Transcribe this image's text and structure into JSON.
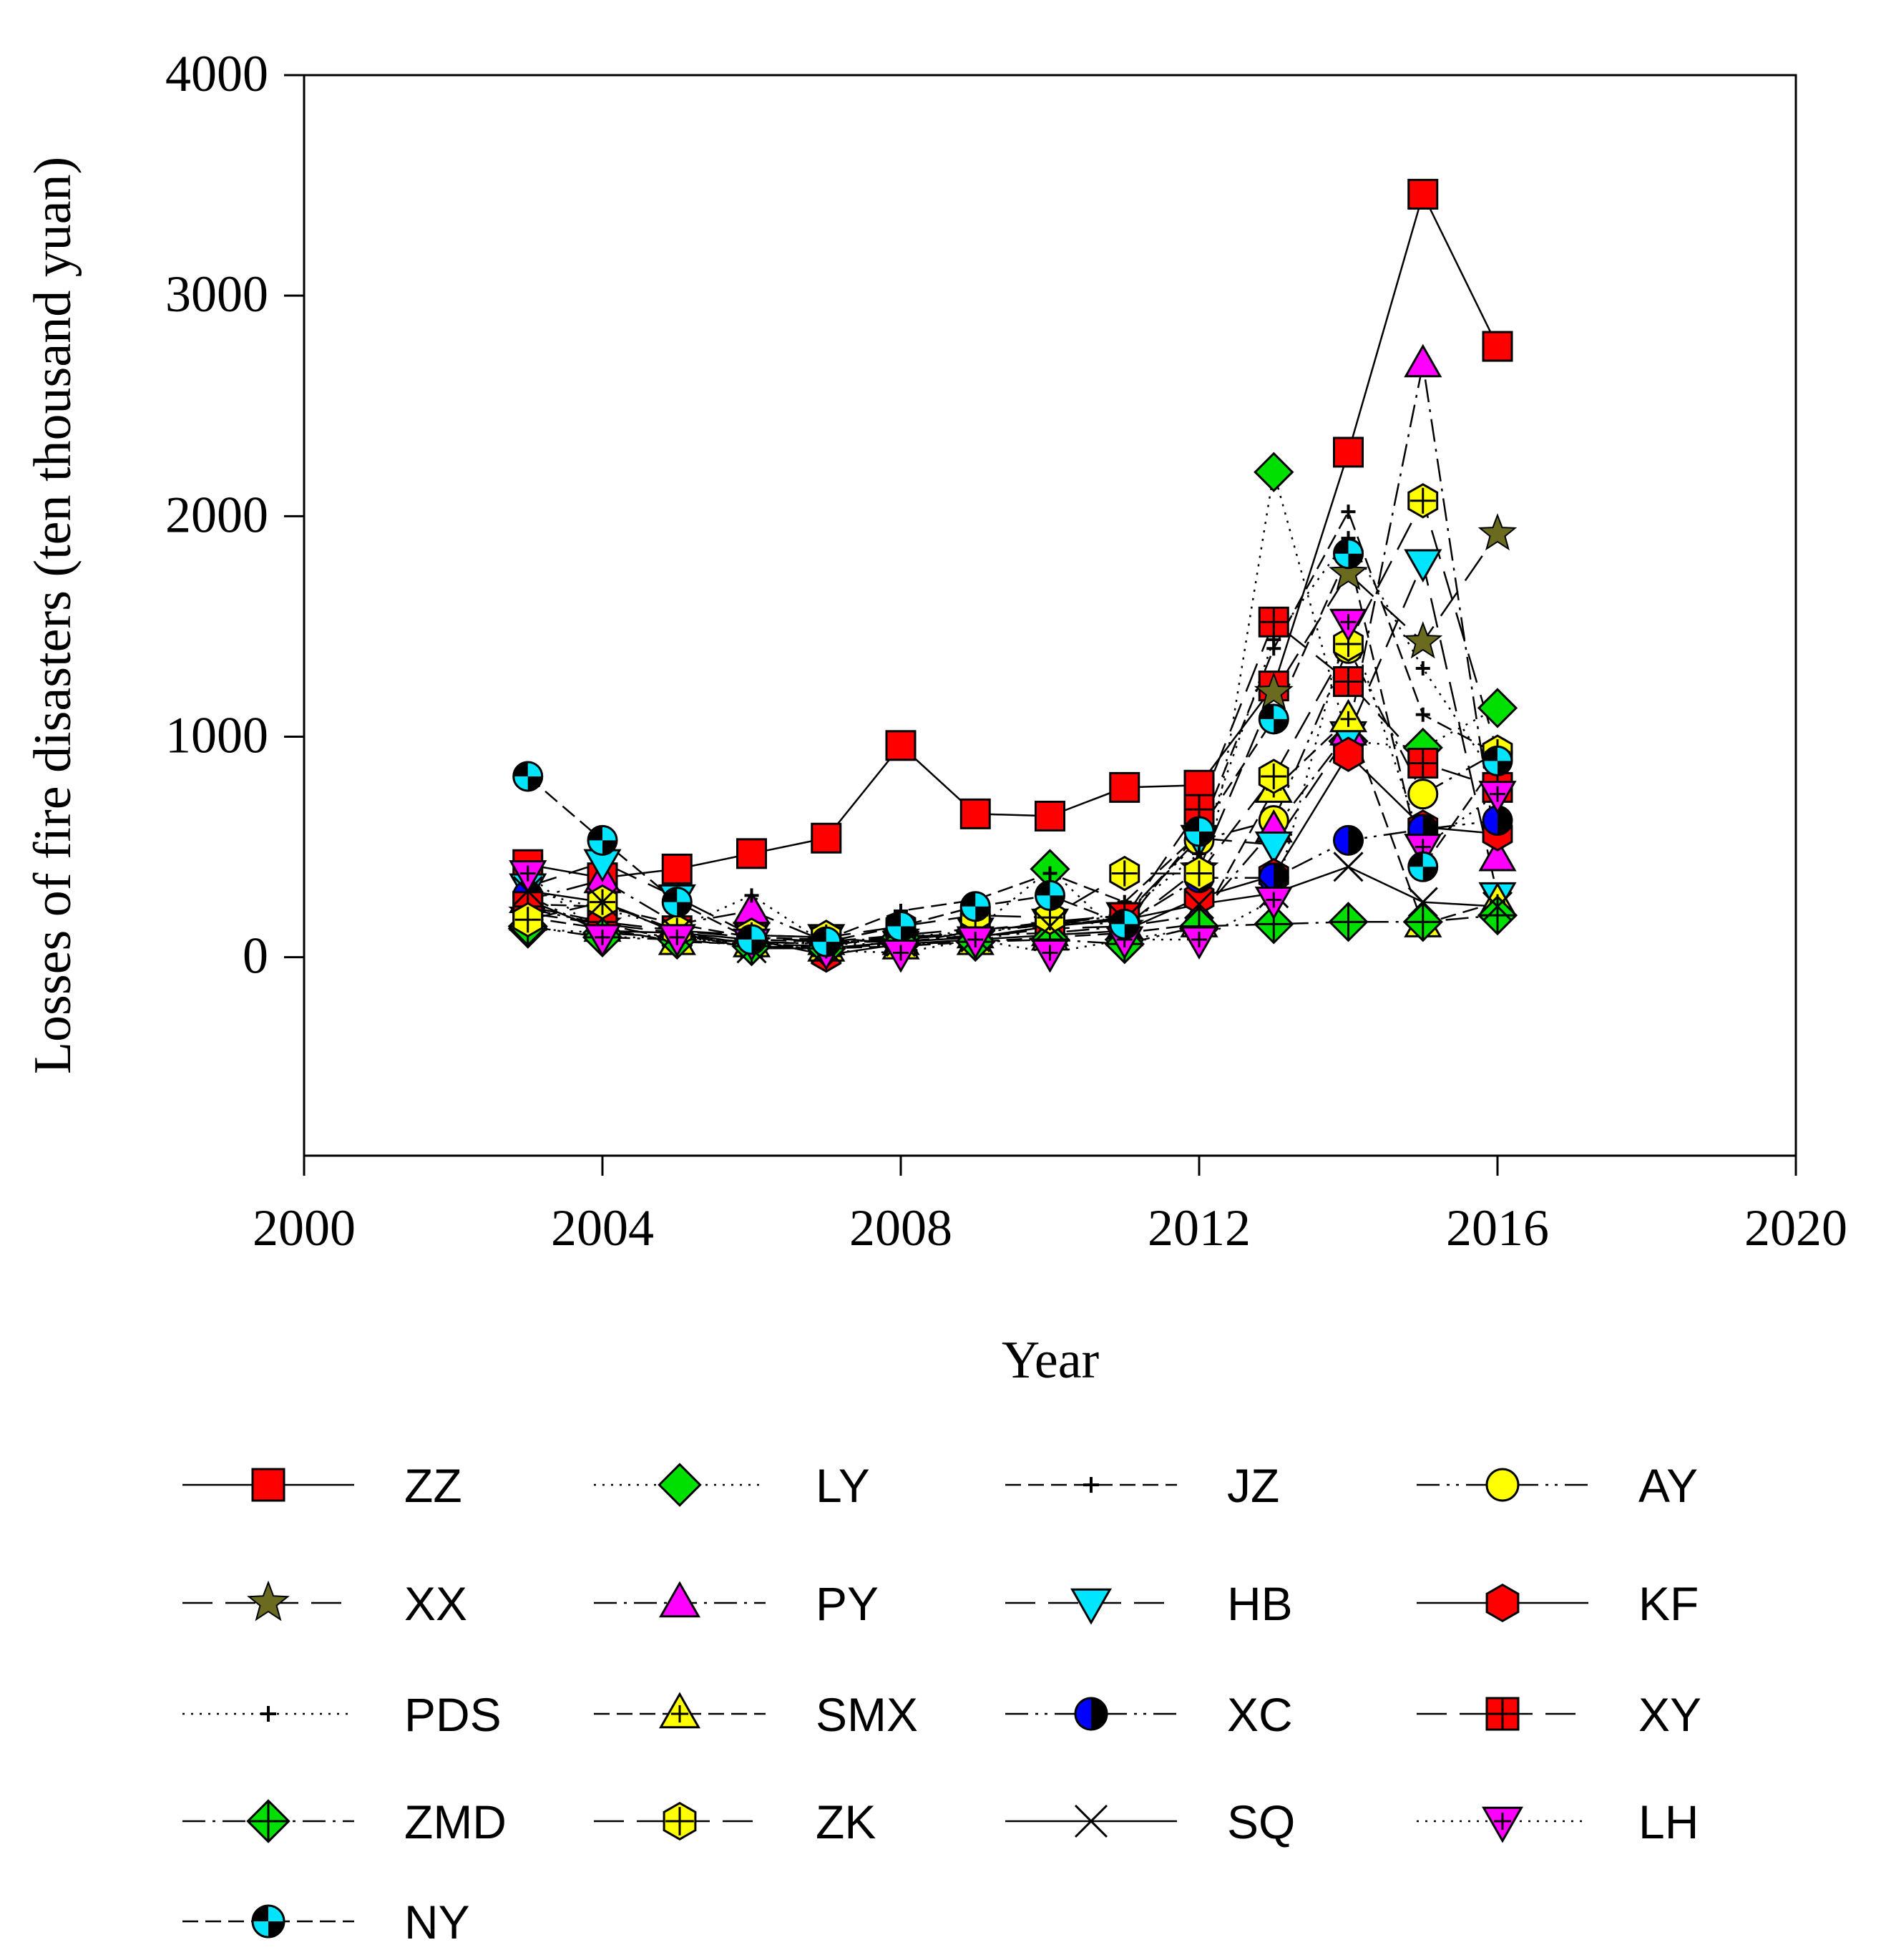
{
  "chart_data": {
    "type": "line",
    "title": "",
    "xlabel": "Year",
    "ylabel": "Losses of fire disasters (ten thousand yuan)",
    "xlim": [
      2000,
      2020
    ],
    "ylim": [
      -900,
      4000
    ],
    "xticks": [
      "2000",
      "2004",
      "2008",
      "2012",
      "2016",
      "2020"
    ],
    "yticks": [
      "0",
      "1000",
      "2000",
      "3000",
      "4000"
    ],
    "x": [
      2003,
      2004,
      2005,
      2006,
      2007,
      2008,
      2009,
      2010,
      2011,
      2012,
      2013,
      2014,
      2015,
      2016
    ],
    "legend_position": "bottom",
    "series": [
      {
        "name": "ZZ",
        "line": "solid",
        "marker": "square",
        "color": "#ff0000",
        "values": [
          420,
          360,
          400,
          470,
          540,
          960,
          650,
          640,
          770,
          780,
          1230,
          2290,
          3460,
          2770
        ]
      },
      {
        "name": "LY",
        "line": "dotted",
        "marker": "diamond",
        "color": "#00e000",
        "values": [
          130,
          110,
          90,
          60,
          70,
          90,
          120,
          400,
          80,
          130,
          2200,
          980,
          950,
          1130
        ]
      },
      {
        "name": "JZ",
        "line": "dash",
        "marker": "plus",
        "color": "#000000",
        "values": [
          240,
          230,
          150,
          90,
          80,
          210,
          260,
          380,
          250,
          560,
          1400,
          2020,
          1100,
          920
        ]
      },
      {
        "name": "AY",
        "line": "dashdotdot",
        "marker": "circle",
        "color": "#ffff00",
        "values": [
          220,
          150,
          80,
          70,
          60,
          90,
          110,
          150,
          190,
          530,
          620,
          1400,
          740,
          930
        ]
      },
      {
        "name": "XX",
        "line": "longdash",
        "marker": "star",
        "color": "#6b6b1f",
        "values": [
          200,
          150,
          110,
          60,
          50,
          100,
          90,
          130,
          140,
          400,
          1200,
          1740,
          1430,
          1920
        ]
      },
      {
        "name": "PY",
        "line": "dashdot",
        "marker": "triangle-up",
        "color": "#ff00ff",
        "values": [
          260,
          350,
          150,
          210,
          70,
          70,
          100,
          110,
          140,
          190,
          580,
          1020,
          2690,
          450
        ]
      },
      {
        "name": "HB",
        "line": "longdash",
        "marker": "triangle-down",
        "color": "#00e5ff",
        "values": [
          320,
          430,
          270,
          100,
          90,
          60,
          120,
          160,
          190,
          540,
          510,
          1010,
          1790,
          280
        ]
      },
      {
        "name": "KF",
        "line": "solid",
        "marker": "hexagon",
        "color": "#ff0000",
        "values": [
          260,
          120,
          110,
          80,
          10,
          60,
          80,
          100,
          120,
          270,
          370,
          920,
          590,
          560
        ]
      },
      {
        "name": "PDS",
        "line": "dotted",
        "marker": "plus",
        "color": "#000000",
        "values": [
          300,
          220,
          130,
          280,
          60,
          60,
          70,
          150,
          200,
          470,
          1440,
          1900,
          1310,
          800
        ]
      },
      {
        "name": "SMX",
        "line": "dash",
        "marker": "triangle-up",
        "color": "#ffff00",
        "values": [
          180,
          130,
          70,
          60,
          40,
          50,
          70,
          90,
          110,
          150,
          760,
          1080,
          150,
          250
        ]
      },
      {
        "name": "XC",
        "line": "dashdotdot",
        "marker": "circle-half",
        "color": "#0000ff",
        "values": [
          280,
          110,
          90,
          70,
          60,
          80,
          110,
          160,
          150,
          360,
          360,
          530,
          580,
          620
        ]
      },
      {
        "name": "XY",
        "line": "longdash",
        "marker": "square-plus",
        "color": "#ff0000",
        "values": [
          230,
          160,
          120,
          90,
          70,
          100,
          130,
          140,
          180,
          670,
          1520,
          1250,
          880,
          770
        ]
      },
      {
        "name": "ZMD",
        "line": "dashdot",
        "marker": "diamond-plus",
        "color": "#00e000",
        "values": [
          140,
          90,
          80,
          50,
          40,
          60,
          70,
          80,
          60,
          140,
          150,
          160,
          160,
          190
        ]
      },
      {
        "name": "ZK",
        "line": "longdash",
        "marker": "hexagon-plus",
        "color": "#ffff00",
        "values": [
          170,
          250,
          120,
          100,
          90,
          140,
          190,
          180,
          380,
          380,
          820,
          1420,
          2070,
          930
        ]
      },
      {
        "name": "SQ",
        "line": "solid",
        "marker": "x",
        "color": "#000000",
        "values": [
          300,
          250,
          110,
          40,
          40,
          70,
          90,
          140,
          170,
          240,
          290,
          410,
          250,
          230
        ]
      },
      {
        "name": "LH",
        "line": "dotted",
        "marker": "triangle-down-plus",
        "color": "#ff00ff",
        "values": [
          380,
          90,
          90,
          70,
          30,
          20,
          80,
          20,
          80,
          80,
          260,
          1520,
          500,
          740
        ]
      },
      {
        "name": "NY",
        "line": "dash",
        "marker": "circle-quarter",
        "color": "#00e5ff",
        "values": [
          820,
          530,
          250,
          80,
          70,
          140,
          230,
          280,
          150,
          570,
          1080,
          1830,
          410,
          890
        ]
      }
    ]
  }
}
